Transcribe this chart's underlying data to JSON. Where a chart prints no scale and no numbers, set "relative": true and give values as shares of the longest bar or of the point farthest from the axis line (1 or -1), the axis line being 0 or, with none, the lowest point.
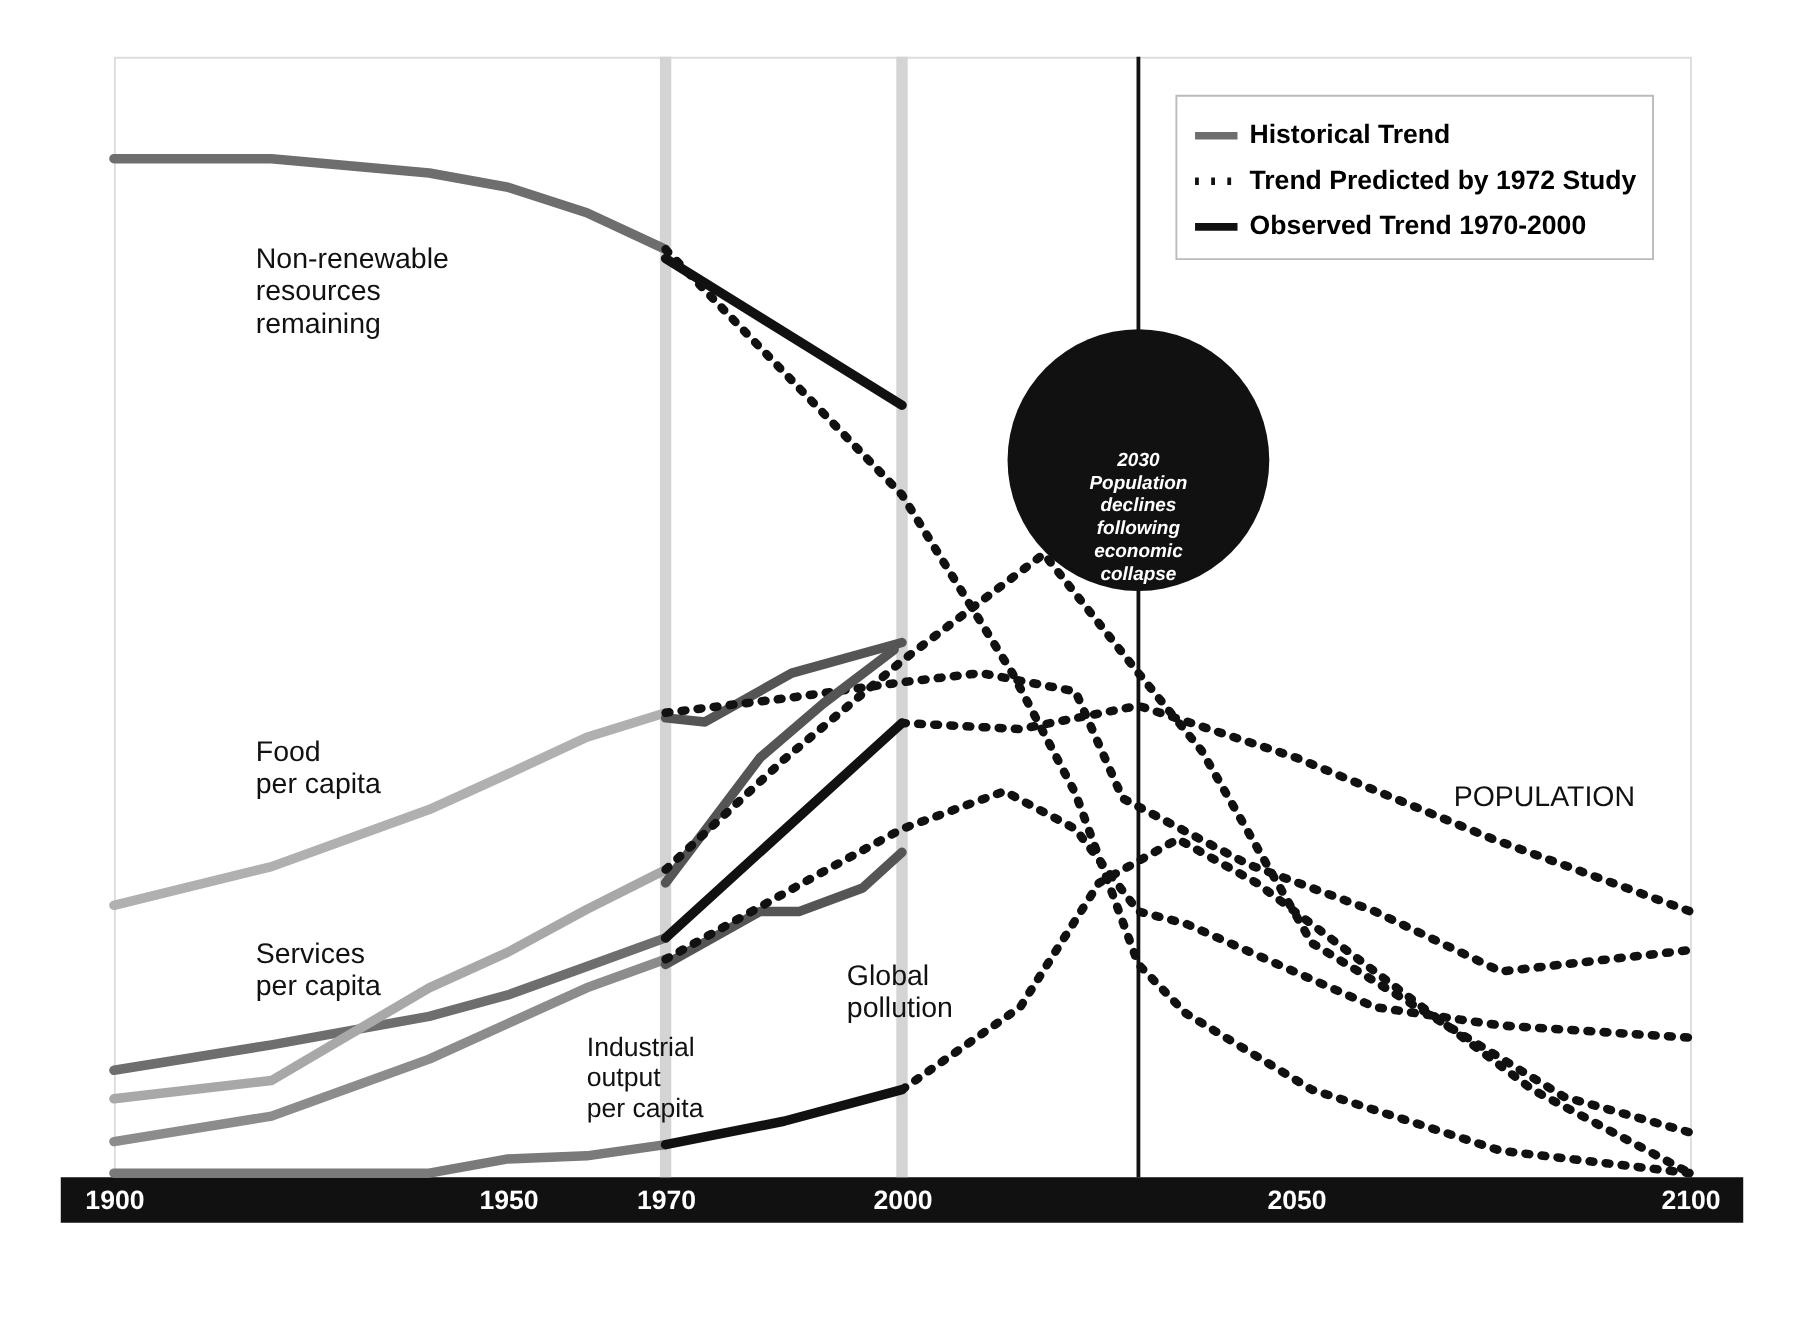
{
  "chart_data": {
    "type": "line",
    "relative": true,
    "xlim": [
      1900,
      2100
    ],
    "xticks": [
      1900,
      1950,
      1970,
      2000,
      2050,
      2100
    ],
    "legend": "top right",
    "series": [
      {
        "name": "Historical Trend",
        "color": "#6e6e6e",
        "line_style": "solid",
        "x": [
          1900,
          1920,
          1940,
          1950,
          1960,
          1970
        ],
        "values": [
          1.0,
          1.0,
          0.986,
          0.972,
          0.947,
          0.911
        ]
      },
      {
        "name": "Trend Predicted by 1972 Study",
        "color": "#111111",
        "line_style": "dotted",
        "x": [
          1970,
          2000,
          2014,
          2022,
          2030,
          2036,
          2052,
          2076,
          2100
        ],
        "values": [
          0.911,
          0.67,
          0.495,
          0.377,
          0.209,
          0.161,
          0.086,
          0.026,
          0.004
        ]
      },
      {
        "name": "Observed Trend 1970-2000",
        "color": "#111111",
        "line_style": "solid",
        "x": [
          1970,
          2000
        ],
        "values": [
          0.902,
          0.758
        ]
      },
      {
        "color": "#b0b0b0",
        "line_style": "solid",
        "x": [
          1900,
          1920,
          1940,
          1950,
          1960,
          1970
        ],
        "values": [
          0.267,
          0.305,
          0.361,
          0.396,
          0.432,
          0.456
        ]
      },
      {
        "color": "#555555",
        "line_style": "solid",
        "x": [
          1970,
          1975,
          1986,
          2000
        ],
        "values": [
          0.451,
          0.447,
          0.495,
          0.525
        ]
      },
      {
        "color": "#111111",
        "line_style": "dotted",
        "x": [
          1970,
          1985,
          2000,
          2010,
          2022,
          2028,
          2044,
          2060,
          2076,
          2100
        ],
        "values": [
          0.456,
          0.47,
          0.486,
          0.495,
          0.477,
          0.372,
          0.307,
          0.261,
          0.202,
          0.223
        ]
      },
      {
        "color": "#6e6e6e",
        "line_style": "solid",
        "x": [
          1900,
          1920,
          1940,
          1950,
          1960,
          1970
        ],
        "values": [
          0.105,
          0.13,
          0.158,
          0.179,
          0.207,
          0.235
        ]
      },
      {
        "color": "#111111",
        "line_style": "solid",
        "x": [
          1970,
          2000
        ],
        "values": [
          0.235,
          0.446
        ]
      },
      {
        "color": "#111111",
        "line_style": "dotted",
        "x": [
          2000,
          2015,
          2030,
          2050,
          2075,
          2100
        ],
        "values": [
          0.446,
          0.44,
          0.463,
          0.412,
          0.332,
          0.261
        ]
      },
      {
        "color": "#a8a8a8",
        "line_style": "solid",
        "x": [
          1900,
          1920,
          1940,
          1950,
          1960,
          1970
        ],
        "values": [
          0.077,
          0.095,
          0.186,
          0.221,
          0.263,
          0.302
        ]
      },
      {
        "color": "#555555",
        "line_style": "solid",
        "x": [
          1970,
          1982,
          1990,
          1999
        ],
        "values": [
          0.289,
          0.412,
          0.465,
          0.518
        ]
      },
      {
        "color": "#111111",
        "line_style": "dotted",
        "x": [
          1970,
          1985,
          2000,
          2018,
          2030,
          2038,
          2052,
          2084,
          2100
        ],
        "values": [
          0.302,
          0.41,
          0.507,
          0.612,
          0.495,
          0.419,
          0.23,
          0.079,
          0.044
        ]
      },
      {
        "color": "#8c8c8c",
        "line_style": "solid",
        "x": [
          1900,
          1920,
          1940,
          1950,
          1960,
          1970
        ],
        "values": [
          0.035,
          0.06,
          0.116,
          0.151,
          0.186,
          0.214
        ]
      },
      {
        "color": "#555555",
        "line_style": "solid",
        "x": [
          1970,
          1982,
          1987,
          1995,
          2000
        ],
        "values": [
          0.209,
          0.261,
          0.261,
          0.284,
          0.319
        ]
      },
      {
        "color": "#111111",
        "line_style": "dotted",
        "x": [
          1970,
          1990,
          2000,
          2013,
          2022,
          2030,
          2036,
          2060,
          2076,
          2100
        ],
        "values": [
          0.214,
          0.3,
          0.342,
          0.379,
          0.342,
          0.261,
          0.249,
          0.167,
          0.149,
          0.137
        ]
      },
      {
        "color": "#7a7a7a",
        "line_style": "solid",
        "x": [
          1900,
          1940,
          1950,
          1960,
          1970
        ],
        "values": [
          0.004,
          0.004,
          0.018,
          0.021,
          0.032
        ]
      },
      {
        "color": "#111111",
        "line_style": "solid",
        "x": [
          1970,
          1985,
          2000
        ],
        "values": [
          0.032,
          0.055,
          0.086
        ]
      },
      {
        "color": "#111111",
        "line_style": "dotted",
        "x": [
          2000,
          2015,
          2025,
          2035,
          2045,
          2060,
          2080,
          2100
        ],
        "values": [
          0.086,
          0.167,
          0.289,
          0.332,
          0.289,
          0.202,
          0.086,
          0.004
        ]
      }
    ],
    "ref_lines": [
      {
        "axis": "x",
        "value": 1970,
        "color": "#d4d4d4"
      },
      {
        "axis": "x",
        "value": 2000,
        "color": "#d4d4d4"
      },
      {
        "axis": "x",
        "value": 2030,
        "color": "#111111",
        "label": "2030\nPopulation\ndeclines\nfollowing\neconomic\ncollapse"
      }
    ],
    "annotations": [
      "Non-renewable\nresources\nremaining",
      "Food\nper capita",
      "Services\nper capita",
      "Industrial\noutput\nper capita",
      "Global\npollution",
      "POPULATION"
    ]
  }
}
